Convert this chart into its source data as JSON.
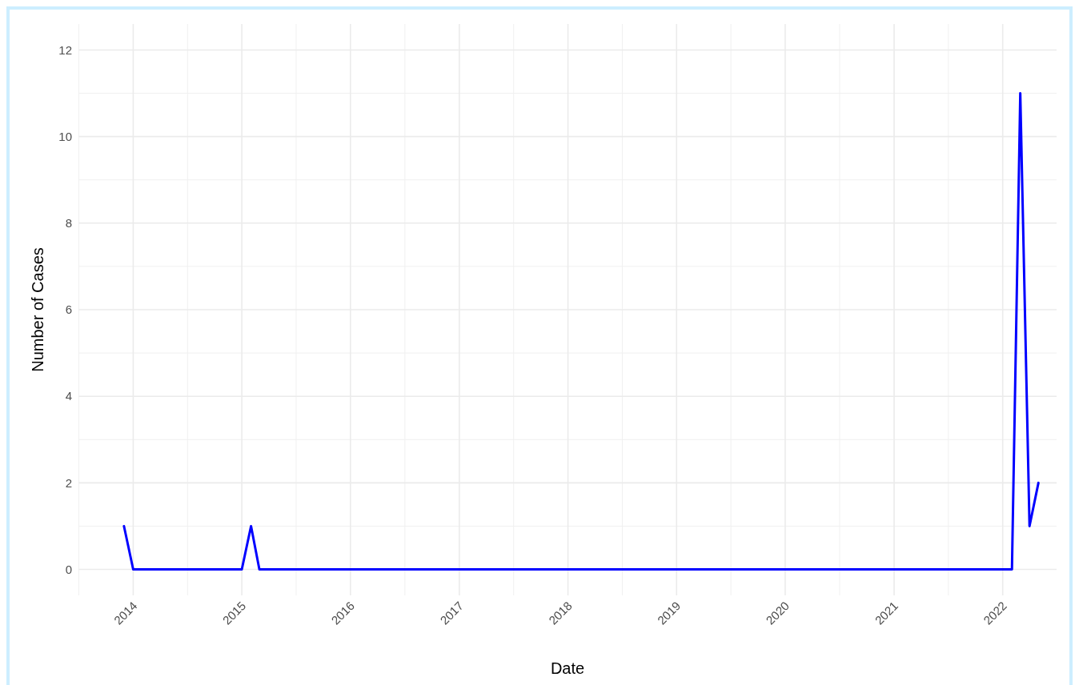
{
  "chart_data": {
    "type": "line",
    "xlabel": "Date",
    "ylabel": "Number of Cases",
    "x": [
      "2013-12",
      "2014-01",
      "2015-01",
      "2015-02",
      "2015-03",
      "2022-02",
      "2022-03",
      "2022-04",
      "2022-05"
    ],
    "series": [
      {
        "color": "#0000ff",
        "values": [
          1,
          0,
          0,
          1,
          0,
          0,
          11,
          1,
          2
        ]
      }
    ],
    "xlim": [
      "2013-07",
      "2022-07"
    ],
    "xticks": [
      "2014",
      "2015",
      "2016",
      "2017",
      "2018",
      "2019",
      "2020",
      "2021",
      "2022"
    ],
    "ylim": [
      -0.6,
      12.6
    ],
    "yticks": [
      0,
      2,
      4,
      6,
      8,
      10,
      12
    ],
    "grid": true,
    "marker": "none",
    "line_style": "solid"
  }
}
